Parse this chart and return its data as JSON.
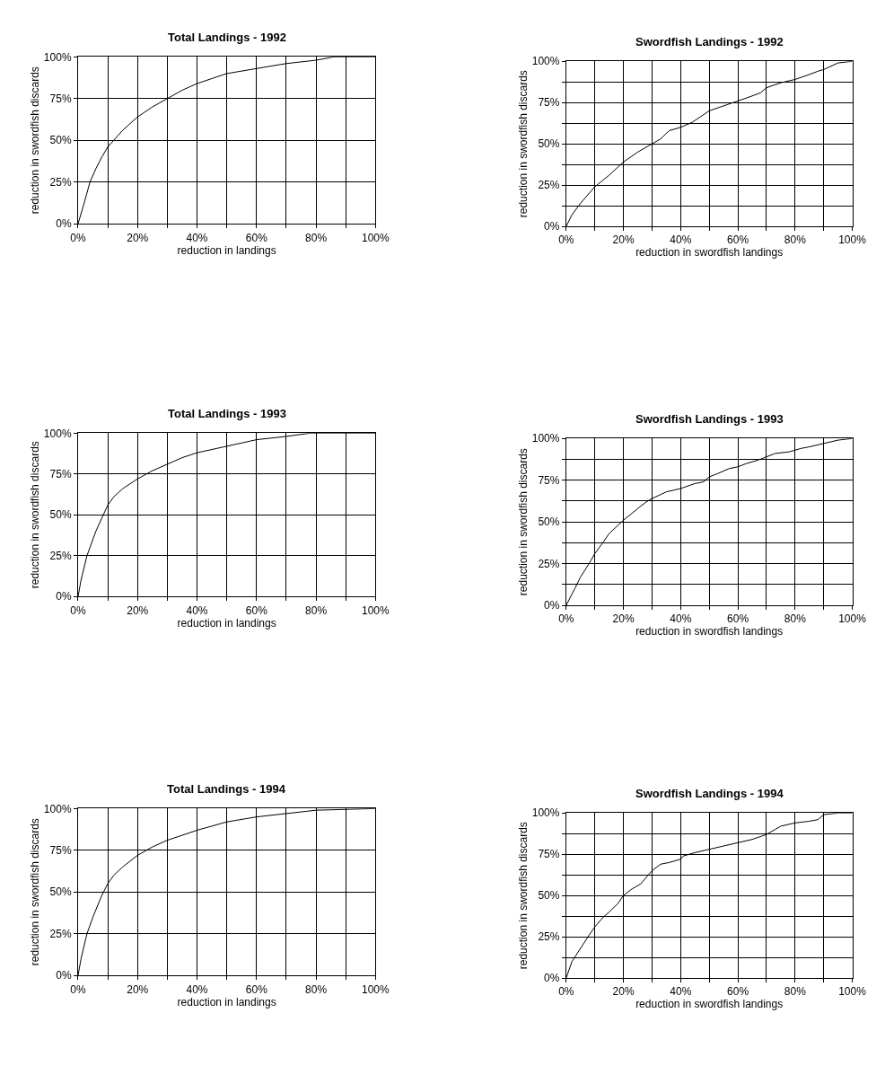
{
  "chart_data": [
    {
      "type": "line",
      "title": "Total Landings - 1992",
      "xlabel": "reduction in landings",
      "ylabel": "reduction in swordfish discards",
      "color": "#000000",
      "x": [
        0,
        2,
        4,
        6,
        8,
        10,
        12,
        15,
        20,
        25,
        30,
        35,
        40,
        45,
        50,
        60,
        70,
        80,
        86,
        100
      ],
      "values": [
        0,
        12,
        25,
        33,
        40,
        46,
        50,
        56,
        64,
        70,
        75,
        80,
        84,
        87,
        90,
        93,
        96,
        98,
        100,
        100
      ],
      "xlim": [
        0,
        100
      ],
      "ylim": [
        0,
        100
      ],
      "xticks": [
        {
          "value": 0,
          "label": "0%"
        },
        {
          "value": 10,
          "label": null
        },
        {
          "value": 20,
          "label": "20%"
        },
        {
          "value": 30,
          "label": null
        },
        {
          "value": 40,
          "label": "40%"
        },
        {
          "value": 50,
          "label": null
        },
        {
          "value": 60,
          "label": "60%"
        },
        {
          "value": 70,
          "label": null
        },
        {
          "value": 80,
          "label": "80%"
        },
        {
          "value": 90,
          "label": null
        },
        {
          "value": 100,
          "label": "100%"
        }
      ],
      "yticks": [
        {
          "value": 0,
          "label": "0%"
        },
        {
          "value": 25,
          "label": "25%"
        },
        {
          "value": 50,
          "label": "50%"
        },
        {
          "value": 75,
          "label": "75%"
        },
        {
          "value": 100,
          "label": "100%"
        }
      ],
      "grid": true
    },
    {
      "type": "line",
      "title": "Swordfish Landings - 1992",
      "xlabel": "reduction in swordfish landings",
      "ylabel": "reduction in swordfish discards",
      "color": "#000000",
      "x": [
        0,
        2,
        5,
        10,
        15,
        20,
        25,
        30,
        33,
        36,
        40,
        44,
        50,
        55,
        60,
        65,
        68,
        70,
        75,
        80,
        85,
        88,
        90,
        95,
        100
      ],
      "values": [
        0,
        7,
        14,
        24,
        31,
        39,
        45,
        50,
        53,
        58,
        60,
        63,
        70,
        73,
        76,
        79,
        81,
        84,
        87,
        89,
        92,
        94,
        95,
        99,
        100
      ],
      "xlim": [
        0,
        100
      ],
      "ylim": [
        0,
        100
      ],
      "xticks": [
        {
          "value": 0,
          "label": "0%"
        },
        {
          "value": 10,
          "label": null
        },
        {
          "value": 20,
          "label": "20%"
        },
        {
          "value": 30,
          "label": null
        },
        {
          "value": 40,
          "label": "40%"
        },
        {
          "value": 50,
          "label": null
        },
        {
          "value": 60,
          "label": "60%"
        },
        {
          "value": 70,
          "label": null
        },
        {
          "value": 80,
          "label": "80%"
        },
        {
          "value": 90,
          "label": null
        },
        {
          "value": 100,
          "label": "100%"
        }
      ],
      "yticks": [
        {
          "value": 0,
          "label": "0%"
        },
        {
          "value": 12.5,
          "label": null
        },
        {
          "value": 25,
          "label": "25%"
        },
        {
          "value": 37.5,
          "label": null
        },
        {
          "value": 50,
          "label": "50%"
        },
        {
          "value": 62.5,
          "label": null
        },
        {
          "value": 75,
          "label": "75%"
        },
        {
          "value": 87.5,
          "label": null
        },
        {
          "value": 100,
          "label": "100%"
        }
      ],
      "grid": true
    },
    {
      "type": "line",
      "title": "Total Landings - 1993",
      "xlabel": "reduction in landings",
      "ylabel": "reduction in swordfish discards",
      "color": "#000000",
      "x": [
        0,
        1,
        3,
        6,
        8,
        10,
        12,
        15,
        20,
        25,
        30,
        35,
        40,
        50,
        60,
        70,
        78,
        100
      ],
      "values": [
        0,
        10,
        25,
        40,
        48,
        56,
        61,
        66,
        72,
        77,
        81,
        85,
        88,
        92,
        96,
        98,
        100,
        100
      ],
      "xlim": [
        0,
        100
      ],
      "ylim": [
        0,
        100
      ],
      "xticks": [
        {
          "value": 0,
          "label": "0%"
        },
        {
          "value": 10,
          "label": null
        },
        {
          "value": 20,
          "label": "20%"
        },
        {
          "value": 30,
          "label": null
        },
        {
          "value": 40,
          "label": "40%"
        },
        {
          "value": 50,
          "label": null
        },
        {
          "value": 60,
          "label": "60%"
        },
        {
          "value": 70,
          "label": null
        },
        {
          "value": 80,
          "label": "80%"
        },
        {
          "value": 90,
          "label": null
        },
        {
          "value": 100,
          "label": "100%"
        }
      ],
      "yticks": [
        {
          "value": 0,
          "label": "0%"
        },
        {
          "value": 25,
          "label": "25%"
        },
        {
          "value": 50,
          "label": "50%"
        },
        {
          "value": 75,
          "label": "75%"
        },
        {
          "value": 100,
          "label": "100%"
        }
      ],
      "grid": true
    },
    {
      "type": "line",
      "title": "Swordfish Landings - 1993",
      "xlabel": "reduction in swordfish landings",
      "ylabel": "reduction in swordfish discards",
      "color": "#000000",
      "x": [
        0,
        3,
        5,
        8,
        10,
        13,
        15,
        20,
        25,
        28,
        30,
        35,
        40,
        45,
        48,
        50,
        53,
        57,
        60,
        63,
        67,
        70,
        73,
        78,
        80,
        82,
        85,
        90,
        95,
        100
      ],
      "values": [
        0,
        10,
        17,
        25,
        31,
        38,
        43,
        51,
        58,
        62,
        64,
        68,
        70,
        73,
        74,
        77,
        79,
        82,
        83,
        85,
        87,
        89,
        91,
        92,
        93,
        94,
        95,
        97,
        99,
        100
      ],
      "xlim": [
        0,
        100
      ],
      "ylim": [
        0,
        100
      ],
      "xticks": [
        {
          "value": 0,
          "label": "0%"
        },
        {
          "value": 10,
          "label": null
        },
        {
          "value": 20,
          "label": "20%"
        },
        {
          "value": 30,
          "label": null
        },
        {
          "value": 40,
          "label": "40%"
        },
        {
          "value": 50,
          "label": null
        },
        {
          "value": 60,
          "label": "60%"
        },
        {
          "value": 70,
          "label": null
        },
        {
          "value": 80,
          "label": "80%"
        },
        {
          "value": 90,
          "label": null
        },
        {
          "value": 100,
          "label": "100%"
        }
      ],
      "yticks": [
        {
          "value": 0,
          "label": "0%"
        },
        {
          "value": 12.5,
          "label": null
        },
        {
          "value": 25,
          "label": "25%"
        },
        {
          "value": 37.5,
          "label": null
        },
        {
          "value": 50,
          "label": "50%"
        },
        {
          "value": 62.5,
          "label": null
        },
        {
          "value": 75,
          "label": "75%"
        },
        {
          "value": 87.5,
          "label": null
        },
        {
          "value": 100,
          "label": "100%"
        }
      ],
      "grid": true
    },
    {
      "type": "line",
      "title": "Total Landings - 1994",
      "xlabel": "reduction in landings",
      "ylabel": "reduction in swordfish discards",
      "color": "#000000",
      "x": [
        0,
        1,
        3,
        5,
        8,
        10,
        12,
        15,
        20,
        25,
        30,
        40,
        50,
        60,
        70,
        80,
        100
      ],
      "values": [
        0,
        10,
        25,
        35,
        48,
        55,
        60,
        65,
        72,
        77,
        81,
        87,
        92,
        95,
        97,
        99,
        100
      ],
      "xlim": [
        0,
        100
      ],
      "ylim": [
        0,
        100
      ],
      "xticks": [
        {
          "value": 0,
          "label": "0%"
        },
        {
          "value": 10,
          "label": null
        },
        {
          "value": 20,
          "label": "20%"
        },
        {
          "value": 30,
          "label": null
        },
        {
          "value": 40,
          "label": "40%"
        },
        {
          "value": 50,
          "label": null
        },
        {
          "value": 60,
          "label": "60%"
        },
        {
          "value": 70,
          "label": null
        },
        {
          "value": 80,
          "label": "80%"
        },
        {
          "value": 90,
          "label": null
        },
        {
          "value": 100,
          "label": "100%"
        }
      ],
      "yticks": [
        {
          "value": 0,
          "label": "0%"
        },
        {
          "value": 25,
          "label": "25%"
        },
        {
          "value": 50,
          "label": "50%"
        },
        {
          "value": 75,
          "label": "75%"
        },
        {
          "value": 100,
          "label": "100%"
        }
      ],
      "grid": true
    },
    {
      "type": "line",
      "title": "Swordfish Landings - 1994",
      "xlabel": "reduction in swordfish landings",
      "ylabel": "reduction in swordfish discards",
      "color": "#000000",
      "x": [
        0,
        2,
        5,
        8,
        10,
        13,
        15,
        18,
        20,
        23,
        26,
        28,
        30,
        33,
        36,
        40,
        41,
        45,
        50,
        55,
        60,
        65,
        70,
        73,
        75,
        80,
        85,
        88,
        90,
        95,
        100
      ],
      "values": [
        0,
        10,
        18,
        26,
        31,
        37,
        40,
        45,
        50,
        54,
        57,
        61,
        65,
        69,
        70,
        72,
        74,
        76,
        78,
        80,
        82,
        84,
        87,
        90,
        92,
        94,
        95,
        96,
        99,
        100,
        100
      ],
      "xlim": [
        0,
        100
      ],
      "ylim": [
        0,
        100
      ],
      "xticks": [
        {
          "value": 0,
          "label": "0%"
        },
        {
          "value": 10,
          "label": null
        },
        {
          "value": 20,
          "label": "20%"
        },
        {
          "value": 30,
          "label": null
        },
        {
          "value": 40,
          "label": "40%"
        },
        {
          "value": 50,
          "label": null
        },
        {
          "value": 60,
          "label": "60%"
        },
        {
          "value": 70,
          "label": null
        },
        {
          "value": 80,
          "label": "80%"
        },
        {
          "value": 90,
          "label": null
        },
        {
          "value": 100,
          "label": "100%"
        }
      ],
      "yticks": [
        {
          "value": 0,
          "label": "0%"
        },
        {
          "value": 12.5,
          "label": null
        },
        {
          "value": 25,
          "label": "25%"
        },
        {
          "value": 37.5,
          "label": null
        },
        {
          "value": 50,
          "label": "50%"
        },
        {
          "value": 62.5,
          "label": null
        },
        {
          "value": 75,
          "label": "75%"
        },
        {
          "value": 87.5,
          "label": null
        },
        {
          "value": 100,
          "label": "100%"
        }
      ],
      "grid": true
    }
  ]
}
